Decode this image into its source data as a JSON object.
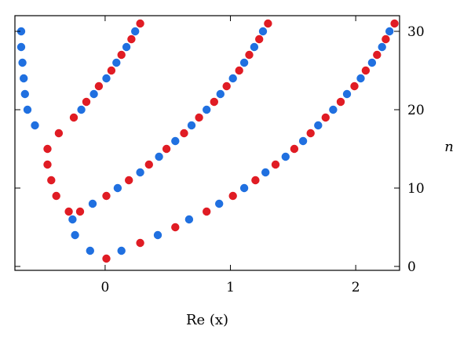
{
  "colors": {
    "blue": "#2070e0",
    "red": "#e01c24"
  },
  "chart_data": {
    "type": "scatter",
    "title": "",
    "xlabel": "Re (x)",
    "ylabel": "n",
    "xlim": [
      -0.72,
      2.35
    ],
    "ylim": [
      -0.5,
      32
    ],
    "x_ticks": [
      0,
      1,
      2
    ],
    "y_ticks": [
      0,
      10,
      20,
      30
    ],
    "grid": false,
    "legend": "none",
    "y_axis_side": "right",
    "series": [
      {
        "color": "blue",
        "points": [
          [
            0.13,
            2
          ],
          [
            -0.12,
            2
          ],
          [
            -0.24,
            4
          ],
          [
            -0.26,
            6
          ],
          [
            -0.1,
            8
          ],
          [
            0.1,
            10
          ],
          [
            0.28,
            12
          ],
          [
            0.43,
            14
          ],
          [
            0.56,
            16
          ],
          [
            0.69,
            18
          ],
          [
            0.81,
            20
          ],
          [
            0.92,
            22
          ],
          [
            1.02,
            24
          ],
          [
            1.11,
            26
          ],
          [
            1.19,
            28
          ],
          [
            1.26,
            30
          ],
          [
            0.42,
            4
          ],
          [
            0.67,
            6
          ],
          [
            0.91,
            8
          ],
          [
            1.11,
            10
          ],
          [
            1.28,
            12
          ],
          [
            1.44,
            14
          ],
          [
            1.58,
            16
          ],
          [
            1.7,
            18
          ],
          [
            1.82,
            20
          ],
          [
            1.93,
            22
          ],
          [
            2.04,
            24
          ],
          [
            2.13,
            26
          ],
          [
            2.21,
            28
          ],
          [
            2.27,
            30
          ],
          [
            -0.56,
            18
          ],
          [
            -0.62,
            20
          ],
          [
            -0.64,
            22
          ],
          [
            -0.65,
            24
          ],
          [
            -0.66,
            26
          ],
          [
            -0.67,
            28
          ],
          [
            -0.67,
            30
          ],
          [
            -0.19,
            20
          ],
          [
            -0.09,
            22
          ],
          [
            0.01,
            24
          ],
          [
            0.09,
            26
          ],
          [
            0.17,
            28
          ],
          [
            0.24,
            30
          ]
        ]
      },
      {
        "color": "red",
        "points": [
          [
            0.01,
            1
          ],
          [
            0.28,
            3
          ],
          [
            0.56,
            5
          ],
          [
            0.81,
            7
          ],
          [
            1.02,
            9
          ],
          [
            1.2,
            11
          ],
          [
            1.36,
            13
          ],
          [
            1.51,
            15
          ],
          [
            1.64,
            17
          ],
          [
            1.76,
            19
          ],
          [
            1.88,
            21
          ],
          [
            1.99,
            23
          ],
          [
            2.08,
            25
          ],
          [
            2.17,
            27
          ],
          [
            2.24,
            29
          ],
          [
            2.31,
            31
          ],
          [
            -0.29,
            7
          ],
          [
            -0.2,
            7
          ],
          [
            0.01,
            9
          ],
          [
            0.19,
            11
          ],
          [
            0.35,
            13
          ],
          [
            0.49,
            15
          ],
          [
            0.63,
            17
          ],
          [
            0.75,
            19
          ],
          [
            0.87,
            21
          ],
          [
            0.97,
            23
          ],
          [
            1.07,
            25
          ],
          [
            1.15,
            27
          ],
          [
            1.23,
            29
          ],
          [
            1.3,
            31
          ],
          [
            -0.39,
            9
          ],
          [
            -0.43,
            11
          ],
          [
            -0.46,
            13
          ],
          [
            -0.46,
            15
          ],
          [
            -0.37,
            17
          ],
          [
            -0.25,
            19
          ],
          [
            -0.15,
            21
          ],
          [
            -0.05,
            23
          ],
          [
            0.05,
            25
          ],
          [
            0.13,
            27
          ],
          [
            0.21,
            29
          ],
          [
            0.28,
            31
          ]
        ]
      }
    ]
  }
}
